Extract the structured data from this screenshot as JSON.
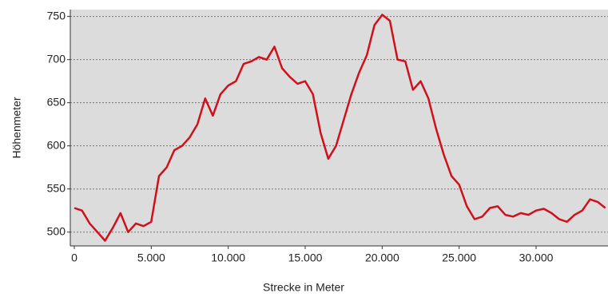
{
  "chart_data": {
    "type": "line",
    "x_label": "Strecke in Meter",
    "y_label": "Höhenmeter",
    "x": [
      0,
      500,
      1000,
      1500,
      2000,
      2500,
      3000,
      3500,
      4000,
      4500,
      5000,
      5500,
      6000,
      6500,
      7000,
      7500,
      8000,
      8500,
      9000,
      9500,
      10000,
      10500,
      11000,
      11500,
      12000,
      12500,
      13000,
      13500,
      14000,
      14500,
      15000,
      15500,
      16000,
      16500,
      17000,
      17500,
      18000,
      18500,
      19000,
      19500,
      20000,
      20500,
      21000,
      21500,
      22000,
      22500,
      23000,
      23500,
      24000,
      24500,
      25000,
      25500,
      26000,
      26500,
      27000,
      27500,
      28000,
      28500,
      29000,
      29500,
      30000,
      30500,
      31000,
      31500,
      32000,
      32500,
      33000,
      33500,
      34000,
      34500
    ],
    "values": [
      528,
      525,
      510,
      500,
      490,
      505,
      522,
      500,
      510,
      507,
      512,
      565,
      575,
      595,
      600,
      610,
      625,
      655,
      635,
      660,
      670,
      675,
      695,
      698,
      703,
      700,
      715,
      690,
      680,
      672,
      675,
      660,
      615,
      585,
      600,
      630,
      660,
      685,
      705,
      740,
      752,
      745,
      700,
      698,
      665,
      675,
      655,
      620,
      590,
      565,
      555,
      530,
      515,
      518,
      528,
      530,
      520,
      518,
      522,
      520,
      525,
      527,
      522,
      515,
      512,
      520,
      525,
      538,
      535,
      528
    ],
    "color": "#d0101a",
    "xlim": [
      -260,
      34670
    ],
    "ylim": [
      484,
      758
    ],
    "xticks": [
      0,
      {
        "value": 5000,
        "label": "5.000"
      },
      {
        "value": 10000,
        "label": "10.000"
      },
      {
        "value": 15000,
        "label": "15.000"
      },
      {
        "value": 20000,
        "label": "20.000"
      },
      {
        "value": 25000,
        "label": "25.000"
      },
      {
        "value": 30000,
        "label": "30.000"
      }
    ],
    "yticks": [
      500,
      550,
      600,
      650,
      700,
      750
    ],
    "grid": true
  }
}
